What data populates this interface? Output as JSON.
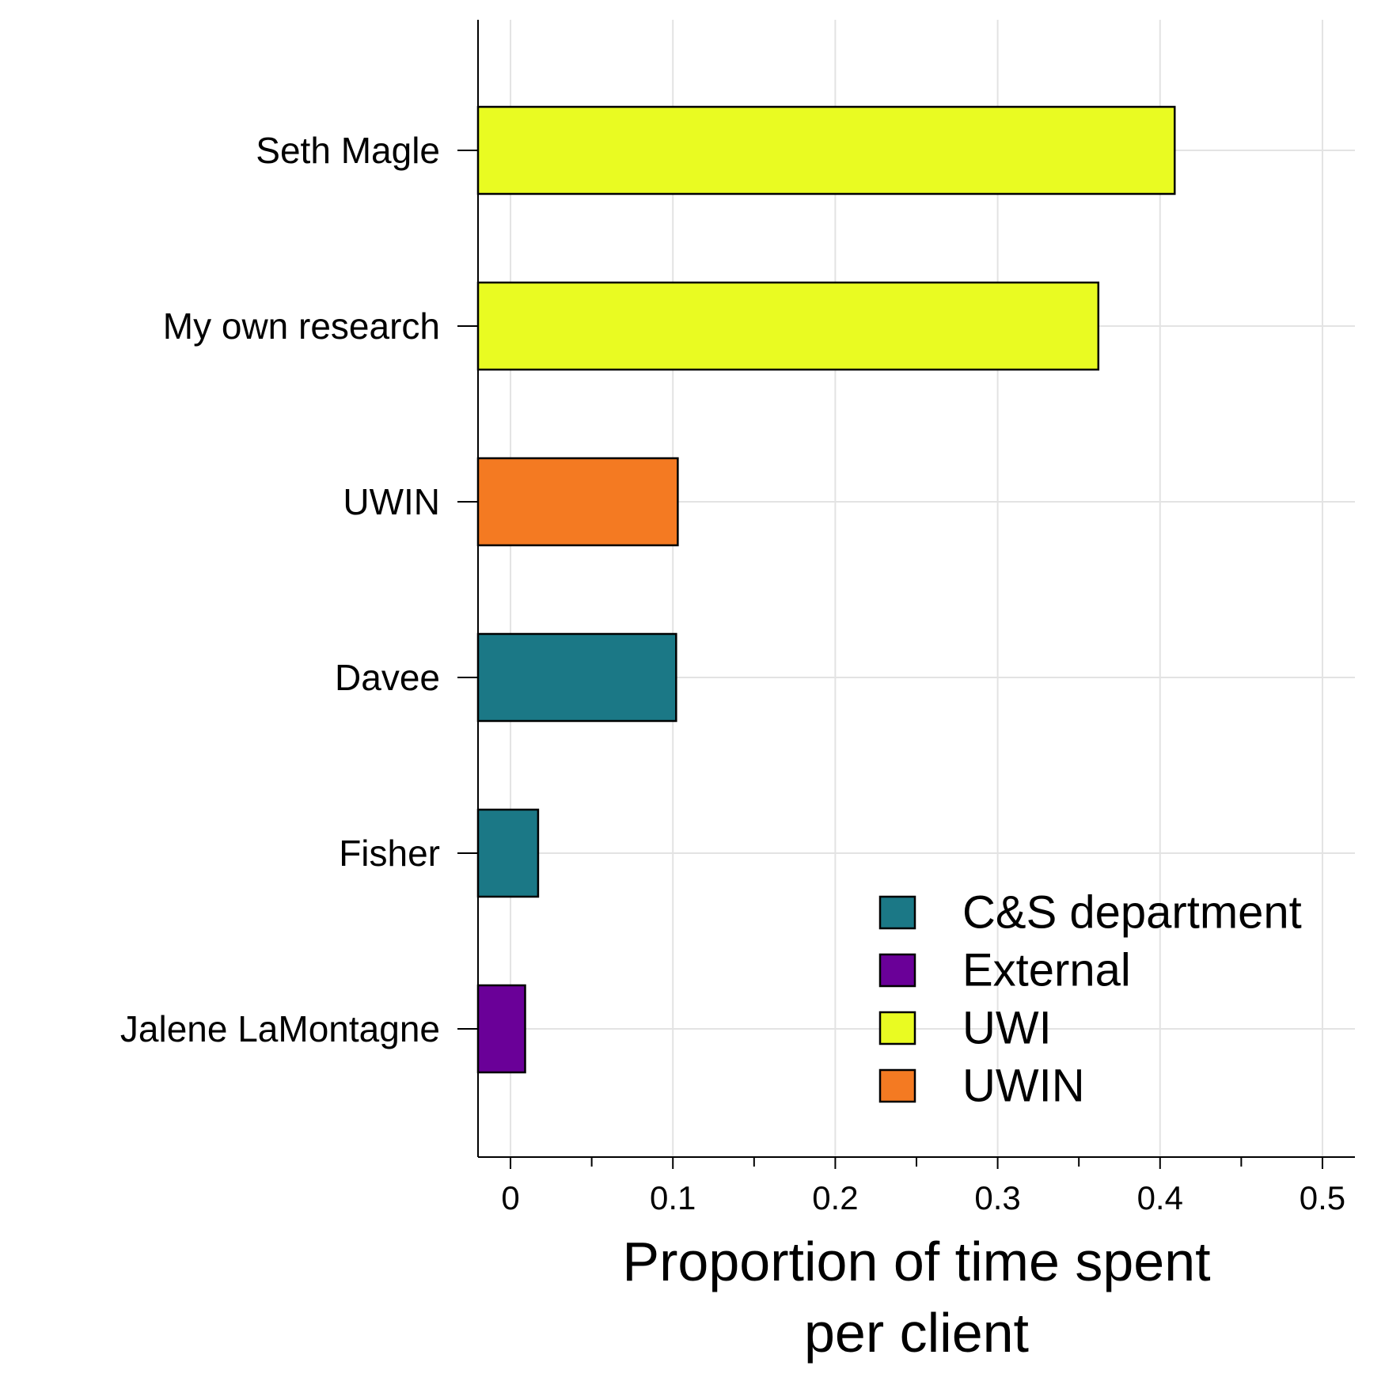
{
  "chart_data": {
    "type": "bar",
    "orientation": "horizontal",
    "categories": [
      "Seth Magle",
      "My own research",
      "UWIN",
      "Davee",
      "Fisher",
      "Jalene LaMontagne"
    ],
    "values": [
      0.409,
      0.362,
      0.103,
      0.102,
      0.017,
      0.009
    ],
    "groups": [
      "UWI",
      "UWI",
      "UWIN",
      "C&S department",
      "C&S department",
      "External"
    ],
    "xlabel_lines": [
      "Proportion of time spent",
      "per client"
    ],
    "ylabel": "",
    "xlim": [
      -0.02,
      0.52
    ],
    "xticks": [
      0,
      0.1,
      0.2,
      0.3,
      0.4,
      0.5
    ],
    "xtick_labels": [
      "0",
      "0.1",
      "0.2",
      "0.3",
      "0.4",
      "0.5"
    ],
    "grid": true,
    "legend": {
      "placement": "bottom-right",
      "entries": [
        {
          "label": "C&S department",
          "color": "#1b7886"
        },
        {
          "label": "External",
          "color": "#6a0098"
        },
        {
          "label": "UWI",
          "color": "#e9fb22"
        },
        {
          "label": "UWIN",
          "color": "#f47a22"
        }
      ]
    }
  }
}
